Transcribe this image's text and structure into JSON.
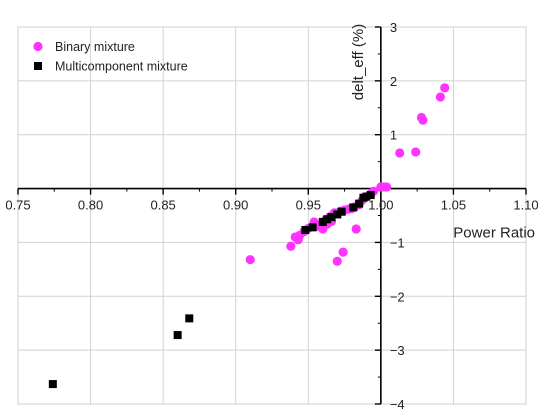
{
  "chart_data": {
    "type": "scatter",
    "title": "",
    "xlabel": "Power Ratio",
    "ylabel": "delt_eff (%)",
    "xlim": [
      0.75,
      1.1
    ],
    "ylim": [
      -4,
      3
    ],
    "xticks": [
      0.75,
      0.8,
      0.85,
      0.9,
      0.95,
      1.0,
      1.05,
      1.1
    ],
    "xtick_labels": [
      "0.75",
      "0.80",
      "0.85",
      "0.90",
      "0.95",
      "1.00",
      "1.05",
      "1.10"
    ],
    "yticks": [
      -4,
      -3,
      -2,
      -1,
      0,
      1,
      2,
      3
    ],
    "ytick_labels": [
      "−4",
      "−3",
      "−2",
      "−1",
      "0",
      "1",
      "2",
      "3"
    ],
    "grid": true,
    "legend_position": "top-left",
    "series": [
      {
        "name": "Binary mixture",
        "marker": "circle",
        "color": "#ff33ff",
        "points": [
          [
            0.91,
            -1.32
          ],
          [
            0.938,
            -1.07
          ],
          [
            0.941,
            -0.9
          ],
          [
            0.943,
            -0.95
          ],
          [
            0.944,
            -0.87
          ],
          [
            0.947,
            -0.8
          ],
          [
            0.95,
            -0.74
          ],
          [
            0.954,
            -0.62
          ],
          [
            0.956,
            -0.7
          ],
          [
            0.958,
            -0.67
          ],
          [
            0.96,
            -0.75
          ],
          [
            0.962,
            -0.58
          ],
          [
            0.963,
            -0.66
          ],
          [
            0.965,
            -0.52
          ],
          [
            0.966,
            -0.61
          ],
          [
            0.968,
            -0.45
          ],
          [
            0.97,
            -1.35
          ],
          [
            0.972,
            -0.42
          ],
          [
            0.974,
            -1.18
          ],
          [
            0.975,
            -0.4
          ],
          [
            0.978,
            -0.38
          ],
          [
            0.98,
            -0.37
          ],
          [
            0.982,
            -0.34
          ],
          [
            0.983,
            -0.75
          ],
          [
            0.985,
            -0.3
          ],
          [
            0.987,
            -0.22
          ],
          [
            0.99,
            -0.15
          ],
          [
            0.993,
            -0.1
          ],
          [
            0.995,
            -0.05
          ],
          [
            1.0,
            0.03
          ],
          [
            1.002,
            0.03
          ],
          [
            1.004,
            0.03
          ],
          [
            1.013,
            0.66
          ],
          [
            1.024,
            0.68
          ],
          [
            1.028,
            1.32
          ],
          [
            1.029,
            1.27
          ],
          [
            1.041,
            1.7
          ],
          [
            1.044,
            1.87
          ]
        ]
      },
      {
        "name": "Multicomponent mixture",
        "marker": "square",
        "color": "#000000",
        "points": [
          [
            0.774,
            -3.63
          ],
          [
            0.86,
            -2.72
          ],
          [
            0.868,
            -2.41
          ],
          [
            0.948,
            -0.77
          ],
          [
            0.953,
            -0.72
          ],
          [
            0.96,
            -0.62
          ],
          [
            0.963,
            -0.57
          ],
          [
            0.966,
            -0.53
          ],
          [
            0.97,
            -0.48
          ],
          [
            0.973,
            -0.43
          ],
          [
            0.981,
            -0.35
          ],
          [
            0.985,
            -0.28
          ],
          [
            0.988,
            -0.17
          ],
          [
            0.99,
            -0.15
          ],
          [
            0.993,
            -0.12
          ]
        ]
      }
    ]
  }
}
